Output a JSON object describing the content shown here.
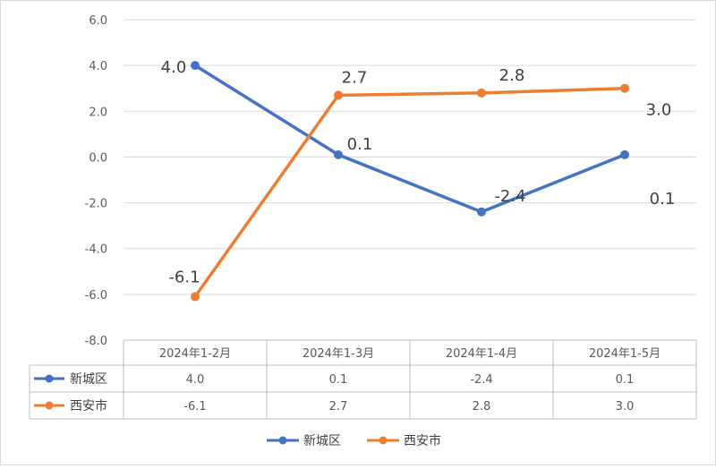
{
  "chart_data": {
    "type": "line",
    "title": "",
    "xlabel": "",
    "ylabel": "",
    "categories": [
      "2024年1-2月",
      "2024年1-3月",
      "2024年1-4月",
      "2024年1-5月"
    ],
    "series": [
      {
        "name": "新城区",
        "color": "#4472C4",
        "values": [
          4.0,
          0.1,
          -2.4,
          0.1
        ],
        "labels": [
          "4.0",
          "0.1",
          "-2.4",
          "0.1"
        ]
      },
      {
        "name": "西安市",
        "color": "#ED7D31",
        "values": [
          -6.1,
          2.7,
          2.8,
          3.0
        ],
        "labels": [
          "-6.1",
          "2.7",
          "2.8",
          "3.0"
        ]
      }
    ],
    "ylim": [
      -8.0,
      6.0
    ],
    "yticks": [
      "6.0",
      "4.0",
      "2.0",
      "0.0",
      "-2.0",
      "-4.0",
      "-6.0",
      "-8.0"
    ],
    "ytick_values": [
      6,
      4,
      2,
      0,
      -2,
      -4,
      -6,
      -8
    ],
    "grid": true,
    "legend": "bottom",
    "data_table": true
  }
}
